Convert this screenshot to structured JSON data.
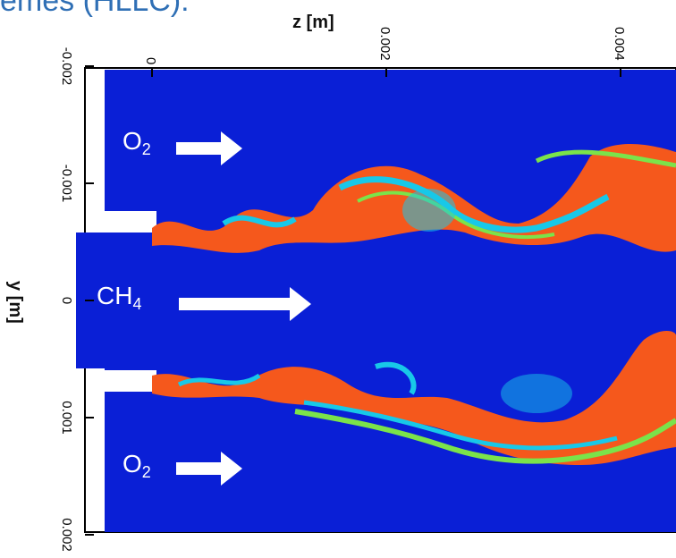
{
  "title_fragment": "emes (HLLC):",
  "chart_data": {
    "type": "heatmap",
    "xlabel": "z [m]",
    "ylabel": "y [m]",
    "x_ticks": [
      "0",
      "0.002",
      "0.004"
    ],
    "y_ticks": [
      "-0.002",
      "-0.001",
      "0",
      "0.001",
      "0.002"
    ],
    "xlim": [
      -0.0004,
      0.0045
    ],
    "ylim": [
      -0.002,
      0.002
    ],
    "colors": {
      "background": "#0a1fd6",
      "flame_hot": "#f5581c",
      "flame_mid": "#18c8e8",
      "flame_edge": "#7be34a"
    },
    "inlets": [
      {
        "species_main": "O",
        "species_sub": "2",
        "position": "upper"
      },
      {
        "species_main": "CH",
        "species_sub": "4",
        "position": "center"
      },
      {
        "species_main": "O",
        "species_sub": "2",
        "position": "lower"
      }
    ]
  }
}
